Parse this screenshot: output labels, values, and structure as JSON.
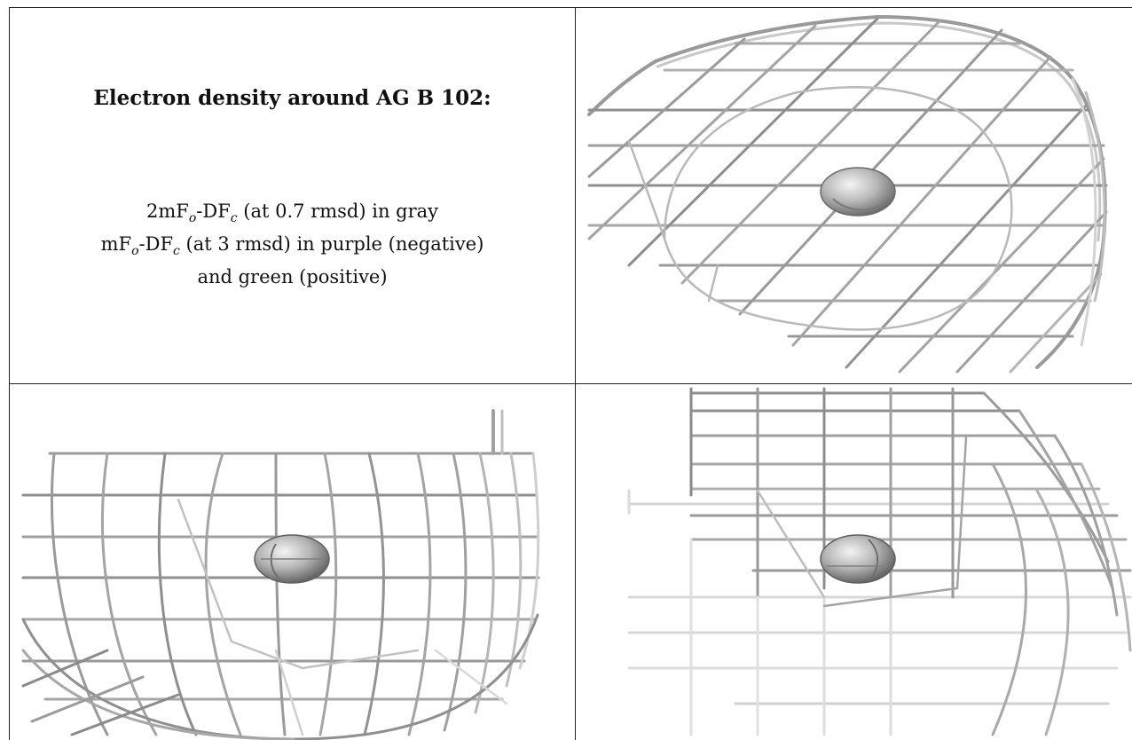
{
  "panel_text": {
    "title": "Electron density around AG B 102:",
    "legend": [
      {
        "prefix": "2mF",
        "sub1": "o",
        "mid": "-DF",
        "sub2": "c",
        "suffix": " (at 0.7 rmsd) in gray"
      },
      {
        "prefix": "mF",
        "sub1": "o",
        "mid": "-DF",
        "sub2": "c",
        "suffix": " (at 3 rmsd) in purple (negative)"
      },
      {
        "prefix": "",
        "sub1": "",
        "mid": "",
        "sub2": "",
        "suffix": "and green (positive)"
      }
    ]
  },
  "views": [
    {
      "name": "view-top-right"
    },
    {
      "name": "view-bottom-left"
    },
    {
      "name": "view-bottom-right"
    }
  ],
  "colors": {
    "mesh_dark": "#8a8a8a",
    "mesh_mid": "#a8a8a8",
    "mesh_light": "#cfcfcf",
    "atom_fill": "#b5b5b5",
    "border": "#222222"
  }
}
